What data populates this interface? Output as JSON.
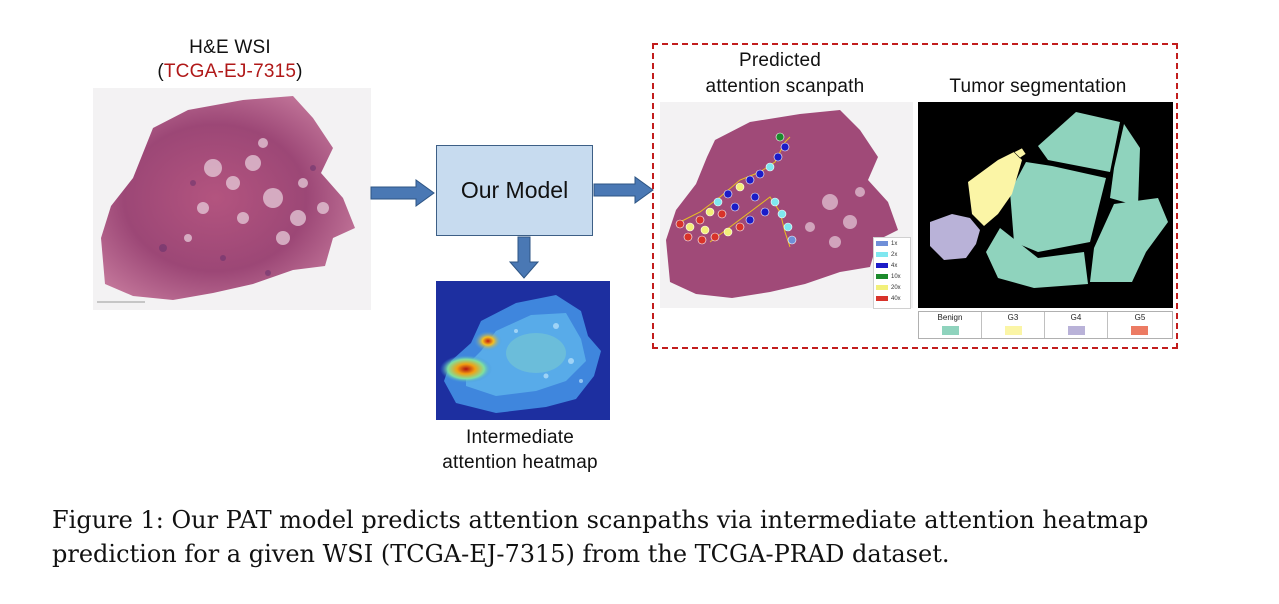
{
  "wsi": {
    "title": "H&E WSI",
    "id_open": "(",
    "id": "TCGA-EJ-7315",
    "id_close": ")"
  },
  "model": {
    "label": "Our Model"
  },
  "heatmap": {
    "label_line1": "Intermediate",
    "label_line2": "attention heatmap"
  },
  "scanpath": {
    "label_line1": "Predicted",
    "label_line2": "attention scanpath",
    "legend": [
      {
        "label": "1x",
        "color": "#6f8fd8"
      },
      {
        "label": "2x",
        "color": "#7fe7f0"
      },
      {
        "label": "4x",
        "color": "#1c1cc8"
      },
      {
        "label": "10x",
        "color": "#1c8a2c"
      },
      {
        "label": "20x",
        "color": "#f2f07a"
      },
      {
        "label": "40x",
        "color": "#d8332a"
      }
    ]
  },
  "segmentation": {
    "label": "Tumor segmentation",
    "grades": [
      {
        "label": "Benign",
        "color": "#8fd3bd"
      },
      {
        "label": "G3",
        "color": "#fbf5a6"
      },
      {
        "label": "G4",
        "color": "#b9b2d8"
      },
      {
        "label": "G5",
        "color": "#ec7b63"
      }
    ]
  },
  "caption": {
    "line1": "Figure 1: Our PAT model predicts attention scanpaths via intermediate attention heatmap",
    "line2": "prediction for a given WSI (TCGA-EJ-7315) from the TCGA-PRAD dataset."
  },
  "colors": {
    "arrow": "#4a78b4",
    "arrow_edge": "#2e5584",
    "dash": "#c21d1d",
    "accent_red": "#b01818"
  }
}
